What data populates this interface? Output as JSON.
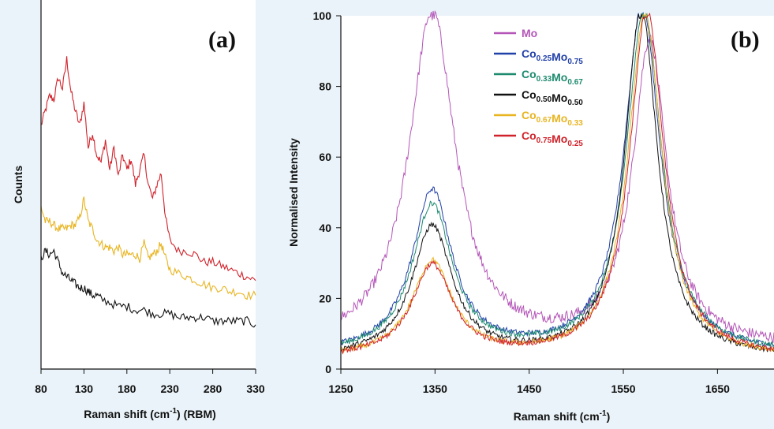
{
  "chart_data": [
    {
      "type": "line",
      "panel_label": "(a)",
      "xlabel": "Raman shift (cm",
      "xlabel_sup": "-1",
      "xlabel_tail": ") (RBM)",
      "ylabel": "Counts",
      "xlim": [
        80,
        330
      ],
      "ylim": [
        0,
        100
      ],
      "x_ticks": [
        "80",
        "130",
        "180",
        "230",
        "280",
        "330"
      ],
      "grid": false,
      "series": [
        {
          "color": "#d0222a",
          "x": [
            80,
            85,
            90,
            95,
            100,
            105,
            110,
            115,
            120,
            125,
            130,
            135,
            140,
            145,
            150,
            155,
            160,
            165,
            170,
            175,
            180,
            185,
            190,
            195,
            200,
            205,
            210,
            215,
            220,
            225,
            230,
            240,
            250,
            260,
            270,
            280,
            290,
            300,
            310,
            320,
            330
          ],
          "y": [
            66,
            70,
            74,
            73,
            79,
            76,
            84,
            75,
            70,
            66,
            72,
            60,
            64,
            58,
            56,
            62,
            54,
            60,
            52,
            58,
            54,
            57,
            50,
            54,
            58,
            50,
            46,
            50,
            53,
            41,
            35,
            32,
            32,
            31,
            29,
            29,
            28,
            27,
            26,
            25,
            24
          ]
        },
        {
          "color": "#e8b420",
          "x": [
            80,
            85,
            90,
            95,
            100,
            105,
            110,
            115,
            120,
            125,
            130,
            135,
            140,
            145,
            150,
            155,
            160,
            165,
            170,
            175,
            180,
            185,
            190,
            195,
            200,
            205,
            210,
            215,
            220,
            225,
            230,
            240,
            250,
            260,
            270,
            280,
            290,
            300,
            310,
            320,
            330
          ],
          "y": [
            44,
            40,
            40,
            39,
            38,
            38,
            38,
            39,
            39,
            41,
            46,
            40,
            38,
            35,
            34,
            33,
            33,
            32,
            33,
            31,
            31,
            31,
            31,
            30,
            34,
            30,
            31,
            32,
            34,
            30,
            27,
            26,
            25,
            24,
            23,
            22,
            22,
            21,
            21,
            20,
            20
          ]
        },
        {
          "color": "#111111",
          "x": [
            80,
            85,
            90,
            95,
            100,
            105,
            110,
            115,
            120,
            125,
            130,
            135,
            140,
            145,
            150,
            160,
            170,
            180,
            190,
            200,
            210,
            220,
            230,
            240,
            250,
            260,
            270,
            280,
            290,
            300,
            310,
            320,
            330
          ],
          "y": [
            30,
            32,
            31,
            32,
            29,
            26,
            25,
            24,
            23,
            22,
            22,
            21,
            20,
            20,
            19,
            18,
            17,
            17,
            16,
            16,
            15,
            15,
            15,
            14,
            14,
            14,
            14,
            13,
            13,
            13,
            13,
            13,
            12
          ]
        }
      ]
    },
    {
      "type": "line",
      "panel_label": "(b)",
      "xlabel": "Raman shift (cm",
      "xlabel_sup": "-1",
      "xlabel_tail": ")",
      "ylabel": "Normalised Intensity",
      "xlim": [
        1250,
        1710
      ],
      "ylim": [
        0,
        100
      ],
      "x_ticks": [
        "1250",
        "1350",
        "1450",
        "1550",
        "1650"
      ],
      "y_ticks": [
        "0",
        "20",
        "40",
        "60",
        "80",
        "100"
      ],
      "grid": false,
      "legend_position": "top-center",
      "series": [
        {
          "name": "Mo",
          "name_parts": [
            [
              "Mo",
              ""
            ]
          ],
          "color": "#b455b8",
          "D_peak": 95,
          "G_peak": 86,
          "G_center": 1578,
          "G_width": 22,
          "baseline": 6
        },
        {
          "name": "Co0.25Mo0.75",
          "name_parts": [
            [
              "Co",
              "0.25"
            ],
            [
              "Mo",
              "0.75"
            ]
          ],
          "color": "#2140a8",
          "D_peak": 46,
          "G_peak": 99,
          "G_center": 1570,
          "G_width": 23,
          "baseline": 4
        },
        {
          "name": "Co0.33Mo0.67",
          "name_parts": [
            [
              "Co",
              "0.33"
            ],
            [
              "Mo",
              "0.67"
            ]
          ],
          "color": "#1d8a6e",
          "D_peak": 42,
          "G_peak": 97,
          "G_center": 1572,
          "G_width": 23,
          "baseline": 4
        },
        {
          "name": "Co0.50Mo0.50",
          "name_parts": [
            [
              "Co",
              "0.50"
            ],
            [
              "Mo",
              "0.50"
            ]
          ],
          "color": "#111111",
          "D_peak": 37,
          "G_peak": 99,
          "G_center": 1569,
          "G_width": 21,
          "baseline": 3
        },
        {
          "name": "Co0.67Mo0.33",
          "name_parts": [
            [
              "Co",
              "0.67"
            ],
            [
              "Mo",
              "0.33"
            ]
          ],
          "color": "#e8b420",
          "D_peak": 27,
          "G_peak": 97,
          "G_center": 1573,
          "G_width": 22,
          "baseline": 3
        },
        {
          "name": "Co0.75Mo0.25",
          "name_parts": [
            [
              "Co",
              "0.75"
            ],
            [
              "Mo",
              "0.25"
            ]
          ],
          "color": "#d0222a",
          "D_peak": 26,
          "G_peak": 99,
          "G_center": 1575,
          "G_width": 22,
          "baseline": 3
        }
      ]
    }
  ]
}
